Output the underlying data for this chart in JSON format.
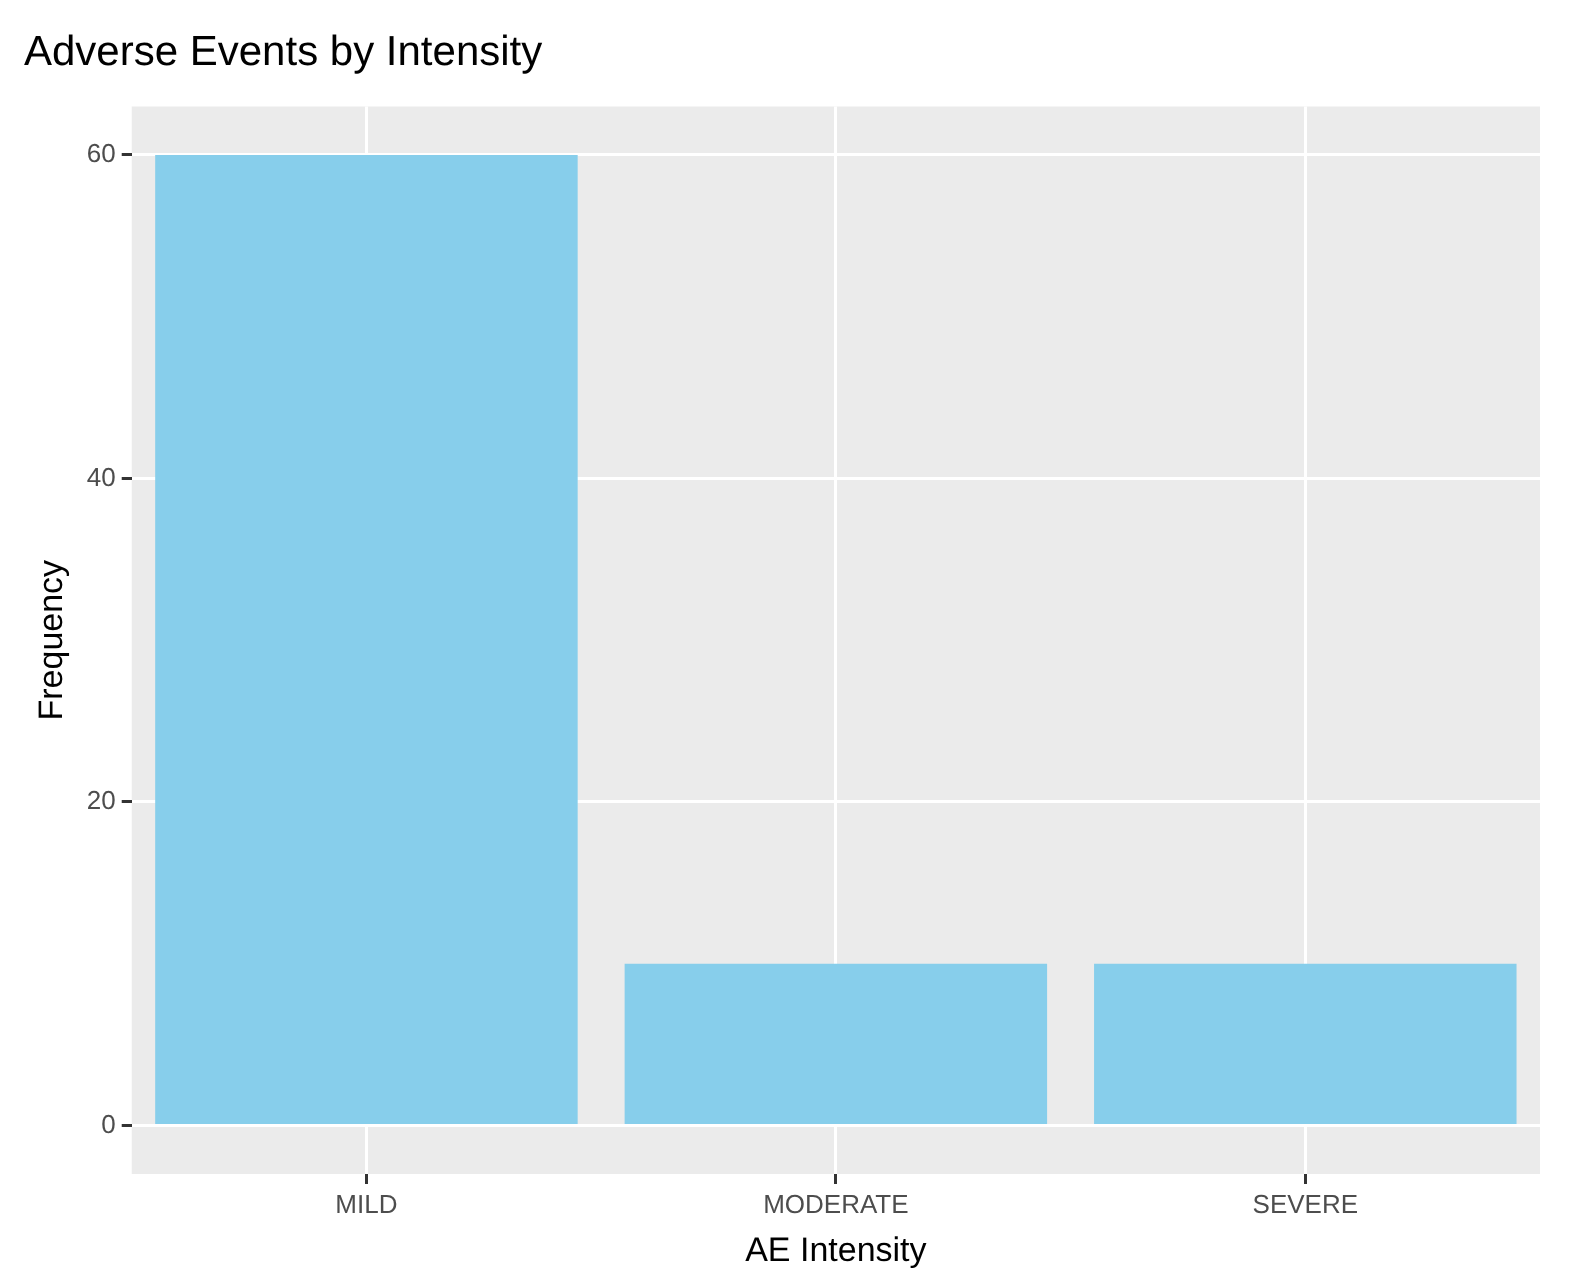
{
  "chart_data": {
    "type": "bar",
    "title": "Adverse Events by Intensity",
    "xlabel": "AE Intensity",
    "ylabel": "Frequency",
    "categories": [
      "MILD",
      "MODERATE",
      "SEVERE"
    ],
    "values": [
      60,
      10,
      10
    ],
    "color": "#87ceeb",
    "ylim": [
      -3,
      63
    ],
    "yticks": [
      0,
      20,
      40,
      60
    ],
    "grid": true
  }
}
